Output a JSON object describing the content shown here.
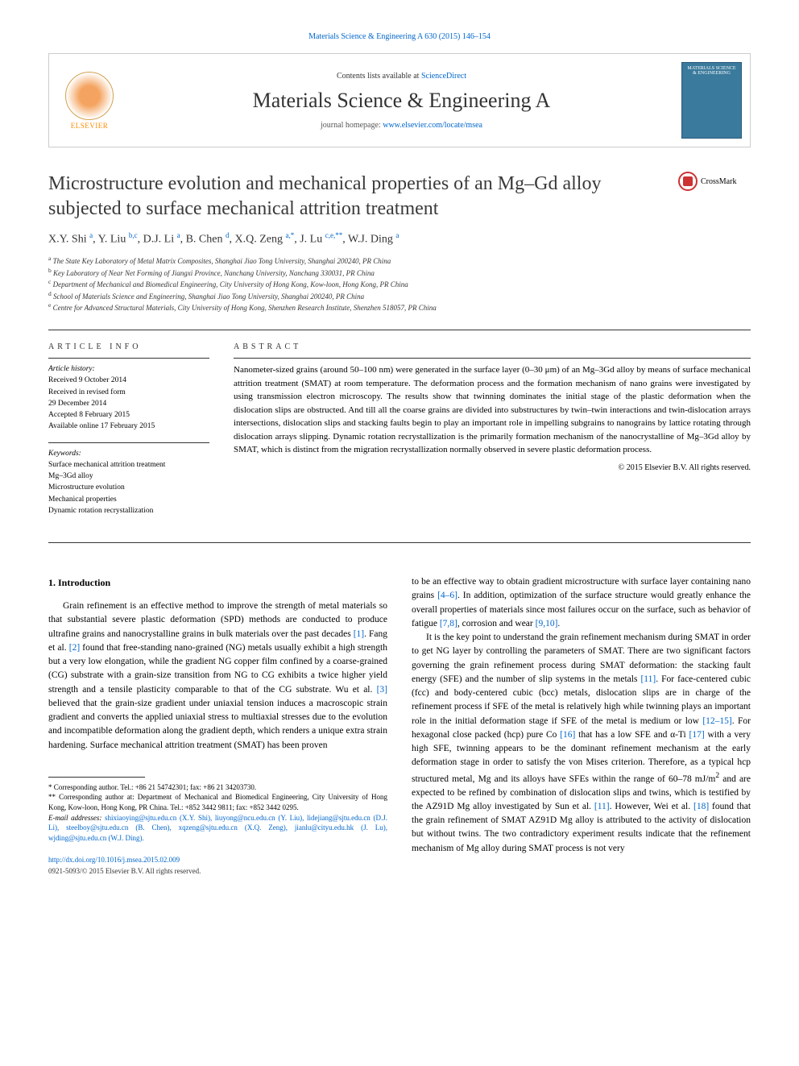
{
  "header": {
    "top_link": "Materials Science & Engineering A 630 (2015) 146–154",
    "contents_prefix": "Contents lists available at ",
    "contents_link": "ScienceDirect",
    "journal_name": "Materials Science & Engineering A",
    "homepage_prefix": "journal homepage: ",
    "homepage_link": "www.elsevier.com/locate/msea",
    "elsevier_label": "ELSEVIER",
    "cover_text": "MATERIALS SCIENCE & ENGINEERING",
    "crossmark_label": "CrossMark"
  },
  "article": {
    "title": "Microstructure evolution and mechanical properties of an Mg–Gd alloy subjected to surface mechanical attrition treatment",
    "authors_html": "X.Y. Shi <sup>a</sup>, Y. Liu <sup>b,c</sup>, D.J. Li <sup>a</sup>, B. Chen <sup>d</sup>, X.Q. Zeng <sup>a,*</sup>, J. Lu <sup>c,e,**</sup>, W.J. Ding <sup>a</sup>",
    "affiliations": [
      "a The State Key Laboratory of Metal Matrix Composites, Shanghai Jiao Tong University, Shanghai 200240, PR China",
      "b Key Laboratory of Near Net Forming of Jiangxi Province, Nanchang University, Nanchang 330031, PR China",
      "c Department of Mechanical and Biomedical Engineering, City University of Hong Kong, Kow-loon, Hong Kong, PR China",
      "d School of Materials Science and Engineering, Shanghai Jiao Tong University, Shanghai 200240, PR China",
      "e Centre for Advanced Structural Materials, City University of Hong Kong, Shenzhen Research Institute, Shenzhen 518057, PR China"
    ]
  },
  "info": {
    "header": "ARTICLE INFO",
    "history_label": "Article history:",
    "history": [
      "Received 9 October 2014",
      "Received in revised form",
      "29 December 2014",
      "Accepted 8 February 2015",
      "Available online 17 February 2015"
    ],
    "keywords_label": "Keywords:",
    "keywords": [
      "Surface mechanical attrition treatment",
      "Mg–3Gd alloy",
      "Microstructure evolution",
      "Mechanical properties",
      "Dynamic rotation recrystallization"
    ]
  },
  "abstract": {
    "header": "ABSTRACT",
    "text": "Nanometer-sized grains (around 50–100 nm) were generated in the surface layer (0–30 μm) of an Mg–3Gd alloy by means of surface mechanical attrition treatment (SMAT) at room temperature. The deformation process and the formation mechanism of nano grains were investigated by using transmission electron microscopy. The results show that twinning dominates the initial stage of the plastic deformation when the dislocation slips are obstructed. And till all the coarse grains are divided into substructures by twin–twin interactions and twin-dislocation arrays intersections, dislocation slips and stacking faults begin to play an important role in impelling subgrains to nanograins by lattice rotating through dislocation arrays slipping. Dynamic rotation recrystallization is the primarily formation mechanism of the nanocrystalline of Mg–3Gd alloy by SMAT, which is distinct from the migration recrystallization normally observed in severe plastic deformation process.",
    "copyright": "© 2015 Elsevier B.V. All rights reserved."
  },
  "body": {
    "heading": "1.  Introduction",
    "col1": [
      "Grain refinement is an effective method to improve the strength of metal materials so that substantial severe plastic deformation (SPD) methods are conducted to produce ultrafine grains and nanocrystalline grains in bulk materials over the past decades <span class='ref'>[1]</span>. Fang et al. <span class='ref'>[2]</span> found that free-standing nano-grained (NG) metals usually exhibit a high strength but a very low elongation, while the gradient NG copper film confined by a coarse-grained (CG) substrate with a grain-size transition from NG to CG exhibits a twice higher yield strength and a tensile plasticity comparable to that of the CG substrate. Wu et al. <span class='ref'>[3]</span> believed that the grain-size gradient under uniaxial tension induces a macroscopic strain gradient and converts the applied uniaxial stress to multiaxial stresses due to the evolution and incompatible deformation along the gradient depth, which renders a unique extra strain hardening. Surface mechanical attrition treatment (SMAT) has been proven"
    ],
    "col2": [
      "to be an effective way to obtain gradient microstructure with surface layer containing nano grains <span class='ref'>[4–6]</span>. In addition, optimization of the surface structure would greatly enhance the overall properties of materials since most failures occur on the surface, such as behavior of fatigue <span class='ref'>[7,8]</span>, corrosion and wear <span class='ref'>[9,10]</span>.",
      "It is the key point to understand the grain refinement mechanism during SMAT in order to get NG layer by controlling the parameters of SMAT. There are two significant factors governing the grain refinement process during SMAT deformation: the stacking fault energy (SFE) and the number of slip systems in the metals <span class='ref'>[11]</span>. For face-centered cubic (fcc) and body-centered cubic (bcc) metals, dislocation slips are in charge of the refinement process if SFE of the metal is relatively high while twinning plays an important role in the initial deformation stage if SFE of the metal is medium or low <span class='ref'>[12–15]</span>. For hexagonal close packed (hcp) pure Co <span class='ref'>[16]</span> that has a low SFE and α-Ti <span class='ref'>[17]</span> with a very high SFE, twinning appears to be the dominant refinement mechanism at the early deformation stage in order to satisfy the von Mises criterion. Therefore, as a typical hcp structured metal, Mg and its alloys have SFEs within the range of 60–78 mJ/m<sup>2</sup> and are expected to be refined by combination of dislocation slips and twins, which is testified by the AZ91D Mg alloy investigated by Sun et al. <span class='ref'>[11]</span>. However, Wei et al. <span class='ref'>[18]</span> found that the grain refinement of SMAT AZ91D Mg alloy is attributed to the activity of dislocation but without twins. The two contradictory experiment results indicate that the refinement mechanism of Mg alloy during SMAT process is not very"
    ]
  },
  "footnotes": {
    "corr1": "* Corresponding author. Tel.: +86 21 54742301; fax: +86 21 34203730.",
    "corr2": "** Corresponding author at: Department of Mechanical and Biomedical Engineering, City University of Hong Kong, Kow-loon, Hong Kong, PR China. Tel.: +852 3442 9811; fax: +852 3442 0295.",
    "email_label": "E-mail addresses: ",
    "emails": "shixiaoying@sjtu.edu.cn (X.Y. Shi), liuyong@ncu.edu.cn (Y. Liu), lidejiang@sjtu.edu.cn (D.J. Li), steelboy@sjtu.edu.cn (B. Chen), xqzeng@sjtu.edu.cn (X.Q. Zeng), jianlu@cityu.edu.hk (J. Lu), wjding@sjtu.edu.cn (W.J. Ding)."
  },
  "footer": {
    "doi": "http://dx.doi.org/10.1016/j.msea.2015.02.009",
    "issn": "0921-5093/© 2015 Elsevier B.V. All rights reserved."
  },
  "colors": {
    "link": "#0066cc",
    "text": "#000000",
    "heading": "#3a3a3a",
    "elsevier_orange": "#ff8c00",
    "crossmark_red": "#cc3333",
    "cover_blue": "#3a7a9c"
  },
  "typography": {
    "title_fontsize": 24,
    "journal_fontsize": 26,
    "body_fontsize": 11.5,
    "abstract_fontsize": 11,
    "small_fontsize": 9,
    "section_header_letterspacing": 4
  }
}
